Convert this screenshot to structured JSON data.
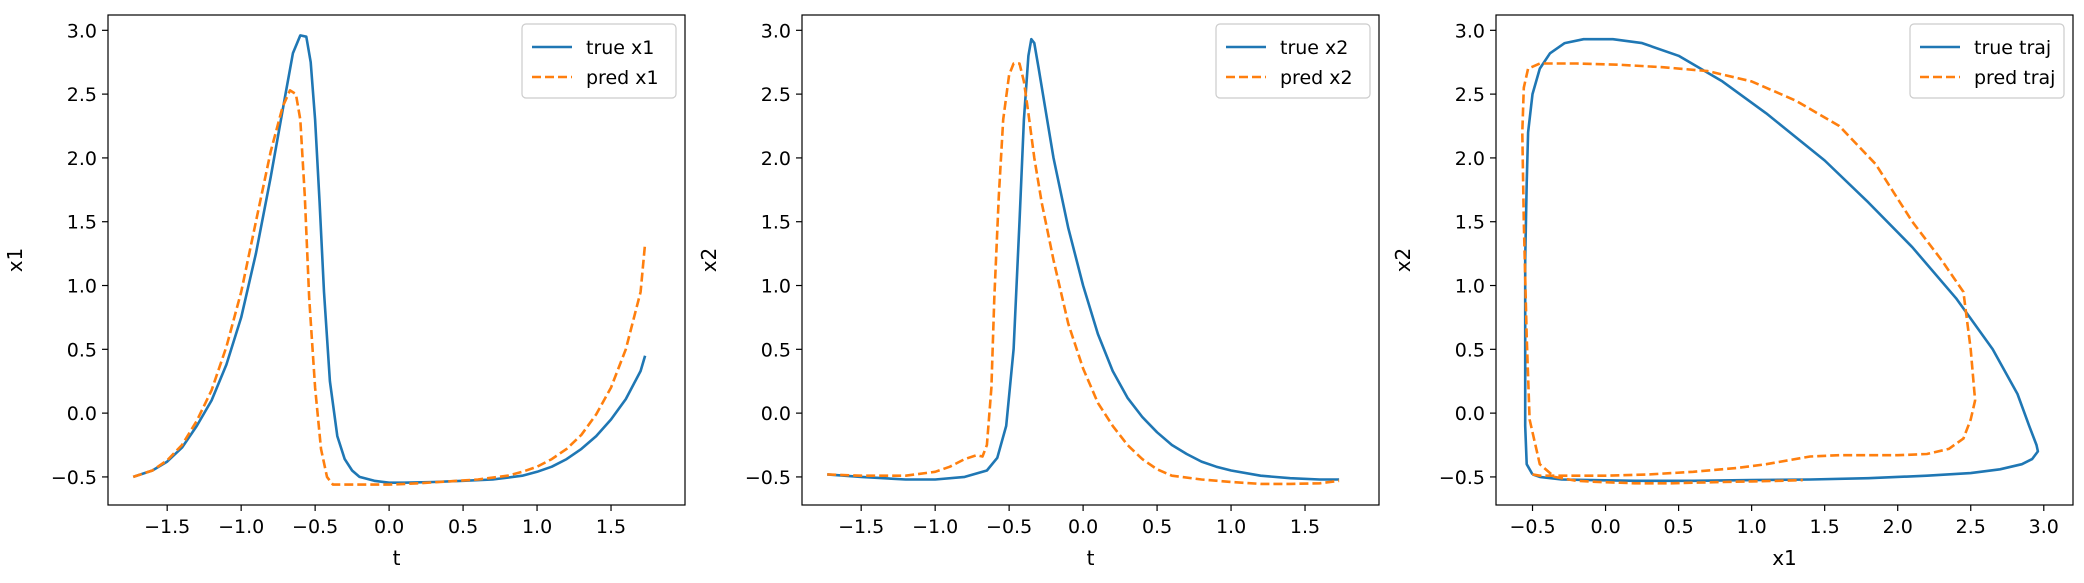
{
  "chart_data": [
    {
      "type": "line",
      "xlabel": "t",
      "ylabel": "x1",
      "xlim": [
        -1.9,
        2.0
      ],
      "ylim": [
        -0.72,
        3.12
      ],
      "xticks": [
        -1.5,
        -1.0,
        -0.5,
        0.0,
        0.5,
        1.0,
        1.5
      ],
      "xtick_labels": [
        "−1.5",
        "−1.0",
        "−0.5",
        "0.0",
        "0.5",
        "1.0",
        "1.5"
      ],
      "yticks": [
        -0.5,
        0.0,
        0.5,
        1.0,
        1.5,
        2.0,
        2.5,
        3.0
      ],
      "ytick_labels": [
        "−0.5",
        "0.0",
        "0.5",
        "1.0",
        "1.5",
        "2.0",
        "2.5",
        "3.0"
      ],
      "grid": false,
      "legend_position": "top-right",
      "series": [
        {
          "name": "true x1",
          "color": "#1f77b4",
          "style": "solid",
          "x": [
            -1.73,
            -1.6,
            -1.5,
            -1.4,
            -1.3,
            -1.2,
            -1.1,
            -1.0,
            -0.9,
            -0.8,
            -0.7,
            -0.65,
            -0.6,
            -0.56,
            -0.53,
            -0.5,
            -0.47,
            -0.44,
            -0.4,
            -0.35,
            -0.3,
            -0.25,
            -0.2,
            -0.1,
            0.0,
            0.1,
            0.3,
            0.5,
            0.7,
            0.9,
            1.0,
            1.1,
            1.2,
            1.3,
            1.4,
            1.5,
            1.6,
            1.7,
            1.73
          ],
          "y": [
            -0.5,
            -0.45,
            -0.38,
            -0.27,
            -0.1,
            0.1,
            0.38,
            0.75,
            1.25,
            1.85,
            2.5,
            2.82,
            2.96,
            2.95,
            2.75,
            2.3,
            1.65,
            0.95,
            0.25,
            -0.18,
            -0.36,
            -0.45,
            -0.5,
            -0.53,
            -0.545,
            -0.545,
            -0.54,
            -0.53,
            -0.52,
            -0.49,
            -0.46,
            -0.42,
            -0.36,
            -0.28,
            -0.18,
            -0.05,
            0.11,
            0.33,
            0.45
          ]
        },
        {
          "name": "pred x1",
          "color": "#ff7f0e",
          "style": "dashed",
          "x": [
            -1.73,
            -1.6,
            -1.5,
            -1.4,
            -1.3,
            -1.2,
            -1.1,
            -1.0,
            -0.9,
            -0.8,
            -0.72,
            -0.67,
            -0.63,
            -0.6,
            -0.57,
            -0.54,
            -0.5,
            -0.46,
            -0.42,
            -0.38,
            -0.33,
            -0.25,
            -0.1,
            0.0,
            0.2,
            0.4,
            0.6,
            0.8,
            0.9,
            1.0,
            1.1,
            1.2,
            1.3,
            1.4,
            1.5,
            1.6,
            1.7,
            1.73
          ],
          "y": [
            -0.5,
            -0.45,
            -0.37,
            -0.25,
            -0.06,
            0.18,
            0.52,
            0.95,
            1.5,
            2.05,
            2.4,
            2.53,
            2.5,
            2.3,
            1.7,
            0.9,
            0.2,
            -0.28,
            -0.5,
            -0.56,
            -0.56,
            -0.56,
            -0.56,
            -0.56,
            -0.55,
            -0.535,
            -0.52,
            -0.49,
            -0.46,
            -0.42,
            -0.36,
            -0.28,
            -0.17,
            -0.01,
            0.2,
            0.5,
            0.95,
            1.33
          ]
        }
      ]
    },
    {
      "type": "line",
      "xlabel": "t",
      "ylabel": "x2",
      "xlim": [
        -1.9,
        2.0
      ],
      "ylim": [
        -0.72,
        3.12
      ],
      "xticks": [
        -1.5,
        -1.0,
        -0.5,
        0.0,
        0.5,
        1.0,
        1.5
      ],
      "xtick_labels": [
        "−1.5",
        "−1.0",
        "−0.5",
        "0.0",
        "0.5",
        "1.0",
        "1.5"
      ],
      "yticks": [
        -0.5,
        0.0,
        0.5,
        1.0,
        1.5,
        2.0,
        2.5,
        3.0
      ],
      "ytick_labels": [
        "−0.5",
        "0.0",
        "0.5",
        "1.0",
        "1.5",
        "2.0",
        "2.5",
        "3.0"
      ],
      "grid": false,
      "legend_position": "top-right",
      "series": [
        {
          "name": "true x2",
          "color": "#1f77b4",
          "style": "solid",
          "x": [
            -1.73,
            -1.5,
            -1.2,
            -1.0,
            -0.8,
            -0.65,
            -0.58,
            -0.52,
            -0.47,
            -0.43,
            -0.4,
            -0.37,
            -0.35,
            -0.33,
            -0.3,
            -0.25,
            -0.2,
            -0.1,
            0.0,
            0.1,
            0.2,
            0.3,
            0.4,
            0.5,
            0.6,
            0.7,
            0.8,
            0.9,
            1.0,
            1.2,
            1.4,
            1.6,
            1.73
          ],
          "y": [
            -0.48,
            -0.5,
            -0.52,
            -0.52,
            -0.5,
            -0.45,
            -0.35,
            -0.1,
            0.5,
            1.5,
            2.3,
            2.8,
            2.93,
            2.9,
            2.7,
            2.35,
            2.0,
            1.45,
            1.0,
            0.62,
            0.33,
            0.12,
            -0.03,
            -0.15,
            -0.25,
            -0.32,
            -0.38,
            -0.42,
            -0.45,
            -0.49,
            -0.51,
            -0.52,
            -0.52
          ]
        },
        {
          "name": "pred x2",
          "color": "#ff7f0e",
          "style": "dashed",
          "x": [
            -1.73,
            -1.5,
            -1.2,
            -1.0,
            -0.9,
            -0.8,
            -0.72,
            -0.68,
            -0.65,
            -0.62,
            -0.6,
            -0.57,
            -0.54,
            -0.5,
            -0.47,
            -0.43,
            -0.4,
            -0.37,
            -0.33,
            -0.28,
            -0.2,
            -0.1,
            0.0,
            0.1,
            0.2,
            0.3,
            0.4,
            0.5,
            0.6,
            0.8,
            1.0,
            1.2,
            1.4,
            1.6,
            1.73
          ],
          "y": [
            -0.48,
            -0.49,
            -0.49,
            -0.46,
            -0.42,
            -0.36,
            -0.33,
            -0.34,
            -0.25,
            0.2,
            0.9,
            1.7,
            2.3,
            2.65,
            2.74,
            2.74,
            2.6,
            2.35,
            2.0,
            1.65,
            1.2,
            0.7,
            0.35,
            0.08,
            -0.1,
            -0.25,
            -0.36,
            -0.44,
            -0.49,
            -0.52,
            -0.54,
            -0.555,
            -0.555,
            -0.55,
            -0.53
          ]
        }
      ]
    },
    {
      "type": "line",
      "xlabel": "x1",
      "ylabel": "x2",
      "xlim": [
        -0.75,
        3.2
      ],
      "ylim": [
        -0.72,
        3.12
      ],
      "xticks": [
        -0.5,
        0.0,
        0.5,
        1.0,
        1.5,
        2.0,
        2.5,
        3.0
      ],
      "xtick_labels": [
        "−0.5",
        "0.0",
        "0.5",
        "1.0",
        "1.5",
        "2.0",
        "2.5",
        "3.0"
      ],
      "yticks": [
        -0.5,
        0.0,
        0.5,
        1.0,
        1.5,
        2.0,
        2.5,
        3.0
      ],
      "ytick_labels": [
        "−0.5",
        "0.0",
        "0.5",
        "1.0",
        "1.5",
        "2.0",
        "2.5",
        "3.0"
      ],
      "grid": false,
      "legend_position": "top-right",
      "series": [
        {
          "name": "true traj",
          "color": "#1f77b4",
          "style": "solid",
          "x": [
            -0.5,
            -0.54,
            -0.55,
            -0.55,
            -0.55,
            -0.54,
            -0.53,
            -0.5,
            -0.45,
            -0.38,
            -0.28,
            -0.15,
            0.05,
            0.25,
            0.5,
            0.8,
            1.1,
            1.5,
            1.8,
            2.1,
            2.4,
            2.65,
            2.82,
            2.9,
            2.95,
            2.96,
            2.92,
            2.85,
            2.7,
            2.5,
            2.2,
            1.8,
            1.4,
            1.0,
            0.6,
            0.2,
            -0.1,
            -0.3,
            -0.45,
            -0.5
          ],
          "y": [
            -0.48,
            -0.4,
            -0.1,
            0.5,
            1.2,
            1.8,
            2.2,
            2.5,
            2.7,
            2.82,
            2.9,
            2.93,
            2.93,
            2.9,
            2.8,
            2.6,
            2.35,
            1.98,
            1.65,
            1.3,
            0.9,
            0.5,
            0.15,
            -0.1,
            -0.25,
            -0.3,
            -0.36,
            -0.4,
            -0.44,
            -0.47,
            -0.49,
            -0.51,
            -0.52,
            -0.525,
            -0.53,
            -0.53,
            -0.525,
            -0.52,
            -0.5,
            -0.48
          ]
        },
        {
          "name": "pred traj",
          "color": "#ff7f0e",
          "style": "dashed",
          "x": [
            -0.5,
            -0.45,
            -0.3,
            0.0,
            0.3,
            0.6,
            0.9,
            1.1,
            1.25,
            1.4,
            1.6,
            1.8,
            2.0,
            2.2,
            2.35,
            2.45,
            2.5,
            2.53,
            2.5,
            2.45,
            2.3,
            2.1,
            1.85,
            1.6,
            1.3,
            1.0,
            0.7,
            0.4,
            0.1,
            -0.2,
            -0.45,
            -0.53,
            -0.56,
            -0.57,
            -0.56,
            -0.54,
            -0.52,
            -0.45,
            -0.35,
            -0.2,
            -0.05,
            0.1,
            0.2,
            0.3,
            0.45,
            0.6,
            0.8,
            1.0,
            1.2,
            1.35
          ],
          "y": [
            -0.48,
            -0.49,
            -0.49,
            -0.49,
            -0.48,
            -0.46,
            -0.43,
            -0.4,
            -0.37,
            -0.34,
            -0.33,
            -0.33,
            -0.33,
            -0.32,
            -0.28,
            -0.2,
            -0.05,
            0.1,
            0.5,
            0.95,
            1.2,
            1.5,
            1.95,
            2.25,
            2.45,
            2.6,
            2.68,
            2.71,
            2.73,
            2.74,
            2.74,
            2.7,
            2.55,
            2.2,
            1.5,
            0.6,
            -0.05,
            -0.4,
            -0.5,
            -0.53,
            -0.54,
            -0.545,
            -0.55,
            -0.55,
            -0.55,
            -0.545,
            -0.54,
            -0.535,
            -0.53,
            -0.525
          ]
        }
      ]
    }
  ]
}
